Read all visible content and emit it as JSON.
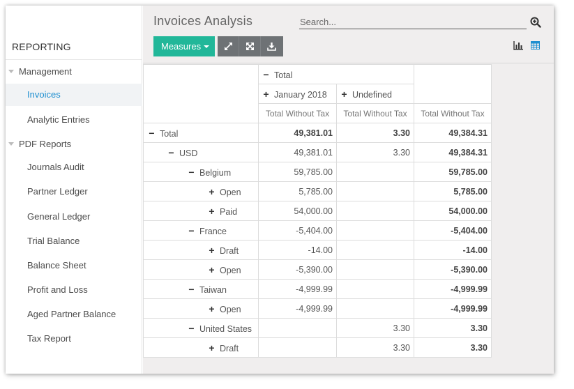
{
  "sidebar": {
    "title": "REPORTING",
    "items": [
      {
        "label": "Management",
        "type": "group"
      },
      {
        "label": "Invoices",
        "type": "sub",
        "active": true
      },
      {
        "label": "Analytic Entries",
        "type": "sub"
      },
      {
        "label": "PDF Reports",
        "type": "group"
      },
      {
        "label": "Journals Audit",
        "type": "sub"
      },
      {
        "label": "Partner Ledger",
        "type": "sub"
      },
      {
        "label": "General Ledger",
        "type": "sub"
      },
      {
        "label": "Trial Balance",
        "type": "sub"
      },
      {
        "label": "Balance Sheet",
        "type": "sub"
      },
      {
        "label": "Profit and Loss",
        "type": "sub"
      },
      {
        "label": "Aged Partner Balance",
        "type": "sub"
      },
      {
        "label": "Tax Report",
        "type": "sub"
      }
    ]
  },
  "header": {
    "title": "Invoices Analysis",
    "search_placeholder": "Search...",
    "measures_label": "Measures",
    "tool_icons": [
      "flip-axis-icon",
      "expand-all-icon",
      "download-icon"
    ],
    "view_icons": [
      "bar-chart-icon",
      "table-icon"
    ],
    "accent_color": "#21b799",
    "link_color": "#1e8fd0"
  },
  "pivot": {
    "col_total_label": "Total",
    "col_groups": [
      "January 2018",
      "Undefined"
    ],
    "measure": "Total Without Tax",
    "rows": [
      {
        "label": "Total",
        "sign": "−",
        "level": 0,
        "values": [
          "49,381.01",
          "3.30",
          "49,384.31"
        ],
        "bold": true
      },
      {
        "label": "USD",
        "sign": "−",
        "level": 1,
        "values": [
          "49,381.01",
          "3.30",
          "49,384.31"
        ]
      },
      {
        "label": "Belgium",
        "sign": "−",
        "level": 2,
        "values": [
          "59,785.00",
          "",
          "59,785.00"
        ]
      },
      {
        "label": "Open",
        "sign": "+",
        "level": 3,
        "values": [
          "5,785.00",
          "",
          "5,785.00"
        ]
      },
      {
        "label": "Paid",
        "sign": "+",
        "level": 3,
        "values": [
          "54,000.00",
          "",
          "54,000.00"
        ]
      },
      {
        "label": "France",
        "sign": "−",
        "level": 2,
        "values": [
          "-5,404.00",
          "",
          "-5,404.00"
        ]
      },
      {
        "label": "Draft",
        "sign": "+",
        "level": 3,
        "values": [
          "-14.00",
          "",
          "-14.00"
        ]
      },
      {
        "label": "Open",
        "sign": "+",
        "level": 3,
        "values": [
          "-5,390.00",
          "",
          "-5,390.00"
        ]
      },
      {
        "label": "Taiwan",
        "sign": "−",
        "level": 2,
        "values": [
          "-4,999.99",
          "",
          "-4,999.99"
        ]
      },
      {
        "label": "Open",
        "sign": "+",
        "level": 3,
        "values": [
          "-4,999.99",
          "",
          "-4,999.99"
        ]
      },
      {
        "label": "United States",
        "sign": "−",
        "level": 2,
        "values": [
          "",
          "3.30",
          "3.30"
        ]
      },
      {
        "label": "Draft",
        "sign": "+",
        "level": 3,
        "values": [
          "",
          "3.30",
          "3.30"
        ]
      }
    ]
  }
}
